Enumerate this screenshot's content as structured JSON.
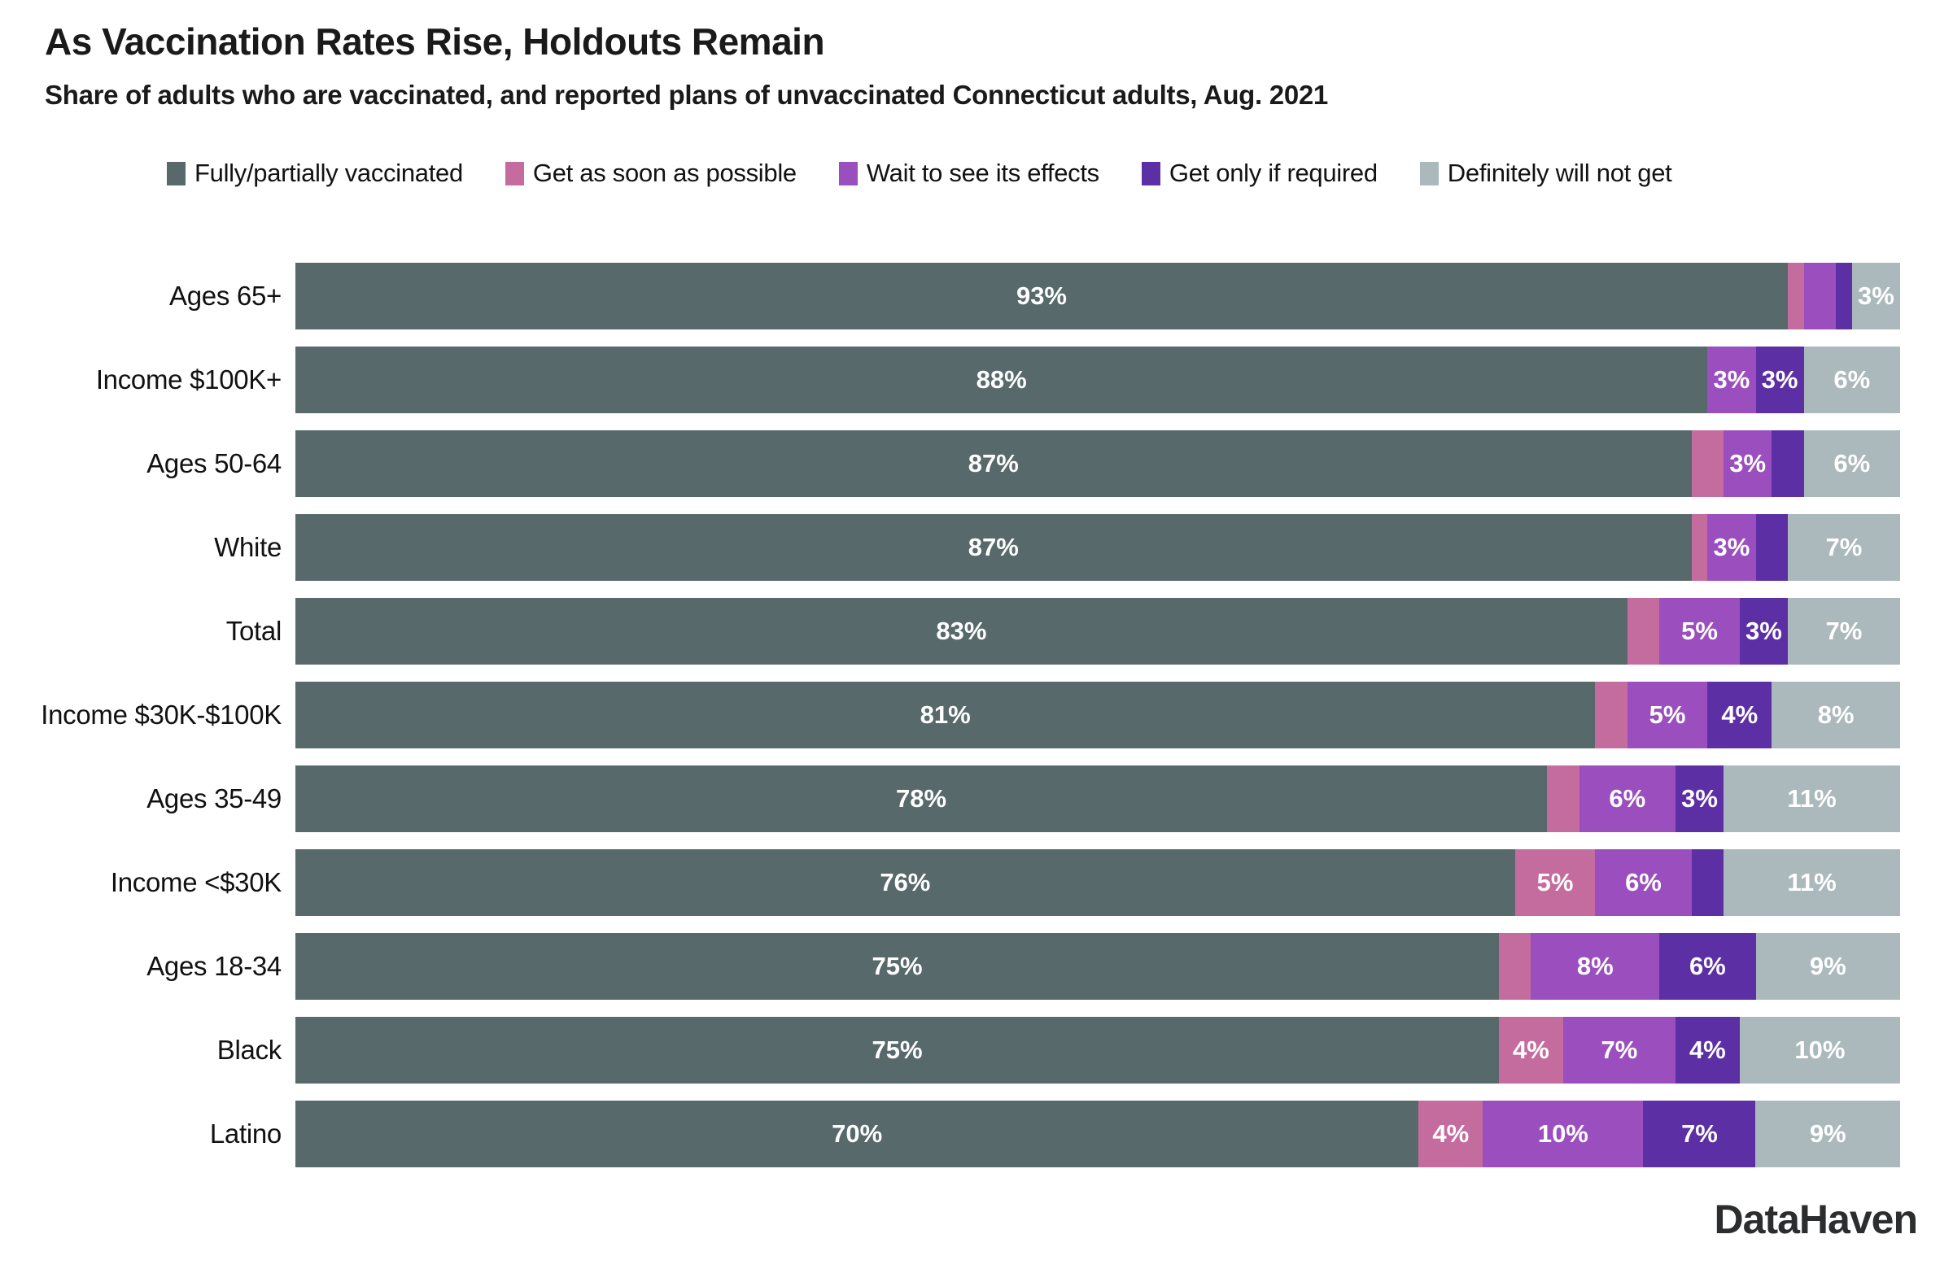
{
  "chart_data": {
    "type": "bar",
    "stacked": true,
    "orientation": "horizontal",
    "title": "As Vaccination Rates Rise, Holdouts Remain",
    "subtitle": "Share of adults who are vaccinated, and reported plans of unvaccinated Connecticut adults, Aug. 2021",
    "categories": [
      "Ages 65+",
      "Income $100K+",
      "Ages 50-64",
      "White",
      "Total",
      "Income $30K-$100K",
      "Ages 35-49",
      "Income <$30K",
      "Ages 18-34",
      "Black",
      "Latino"
    ],
    "series": [
      {
        "name": "Fully/partially vaccinated",
        "color": "#57696B",
        "values": [
          93,
          88,
          87,
          87,
          83,
          81,
          78,
          76,
          75,
          75,
          70
        ]
      },
      {
        "name": "Get as soon as possible",
        "color": "#C56C9F",
        "values": [
          1,
          0,
          2,
          1,
          2,
          2,
          2,
          5,
          2,
          4,
          4
        ]
      },
      {
        "name": "Wait to see its effects",
        "color": "#9B4FBE",
        "values": [
          2,
          3,
          3,
          3,
          5,
          5,
          6,
          6,
          8,
          7,
          10
        ]
      },
      {
        "name": "Get only if required",
        "color": "#5D2FA5",
        "values": [
          1,
          3,
          2,
          2,
          3,
          4,
          3,
          2,
          6,
          4,
          7
        ]
      },
      {
        "name": "Definitely will not get",
        "color": "#ABB9BC",
        "values": [
          3,
          6,
          6,
          7,
          7,
          8,
          11,
          11,
          9,
          10,
          9
        ]
      }
    ],
    "xlim": [
      0,
      100
    ],
    "value_suffix": "%",
    "label_min_value": 3,
    "legend_position": "top",
    "grid": false
  },
  "footer": {
    "logo_text": "DataHaven"
  }
}
